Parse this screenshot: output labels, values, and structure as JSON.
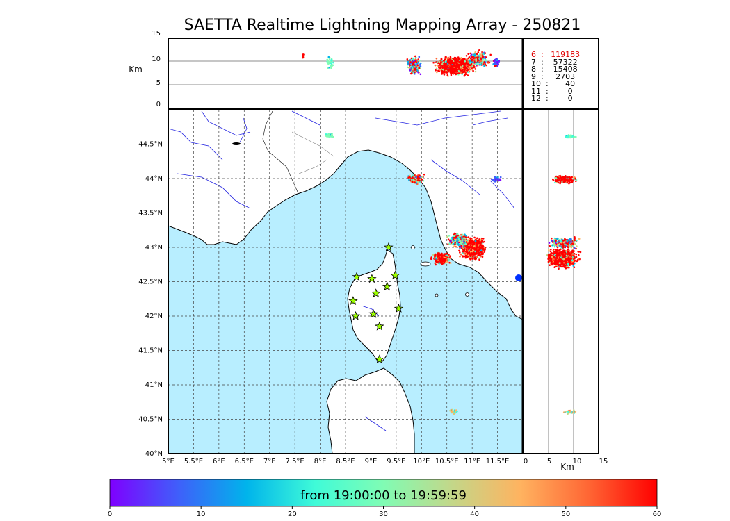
{
  "title": "SAETTA Realtime Lightning Mapping Array - 250821",
  "alt_label": "Km",
  "alt_ticks": [
    "0",
    "5",
    "10",
    "15"
  ],
  "lat_ticks": [
    "40°N",
    "40.5°N",
    "41°N",
    "41.5°N",
    "42°N",
    "42.5°N",
    "43°N",
    "43.5°N",
    "44°N",
    "44.5°N"
  ],
  "lon_ticks": [
    "5°E",
    "5.5°E",
    "6°E",
    "6.5°E",
    "7°E",
    "7.5°E",
    "8°E",
    "8.5°E",
    "9°E",
    "9.5°E",
    "10°E",
    "10.5°E",
    "11°E",
    "11.5°E"
  ],
  "side_ticks": [
    "0",
    "5",
    "10",
    "15"
  ],
  "side_xlabel": "Km",
  "station_counts": [
    {
      "label": "6  :   119183",
      "color": "#e00000"
    },
    {
      "label": "7  :    57322",
      "color": "#000000"
    },
    {
      "label": "8  :    15408",
      "color": "#000000"
    },
    {
      "label": "9  :     2703",
      "color": "#000000"
    },
    {
      "label": "10  :       40",
      "color": "#000000"
    },
    {
      "label": "11  :        0",
      "color": "#000000"
    },
    {
      "label": "12  :        0",
      "color": "#000000"
    }
  ],
  "colorbar": {
    "text": "from 19:00:00 to 19:59:59",
    "ticks": [
      "0",
      "10",
      "20",
      "30",
      "40",
      "50",
      "60"
    ],
    "colors": [
      "#7f00ff",
      "#3f5ffa",
      "#00b4eb",
      "#3ffbd8",
      "#80fcb4",
      "#c3d789",
      "#ffb360",
      "#ff6634",
      "#ff0000"
    ]
  },
  "map": {
    "sea_color": "#b8eeff",
    "land_color": "#ffffff",
    "river_color": "#2020e0",
    "lon_range": [
      5,
      12
    ],
    "lat_range": [
      40,
      45
    ],
    "stations": [
      {
        "lon": 9.35,
        "lat": 43.0
      },
      {
        "lon": 8.72,
        "lat": 42.57
      },
      {
        "lon": 9.02,
        "lat": 42.54
      },
      {
        "lon": 9.48,
        "lat": 42.59
      },
      {
        "lon": 9.32,
        "lat": 42.43
      },
      {
        "lon": 9.1,
        "lat": 42.33
      },
      {
        "lon": 8.65,
        "lat": 42.22
      },
      {
        "lon": 9.55,
        "lat": 42.11
      },
      {
        "lon": 8.7,
        "lat": 42.0
      },
      {
        "lon": 9.05,
        "lat": 42.03
      },
      {
        "lon": 9.17,
        "lat": 41.85
      },
      {
        "lon": 9.17,
        "lat": 41.37
      }
    ]
  }
}
